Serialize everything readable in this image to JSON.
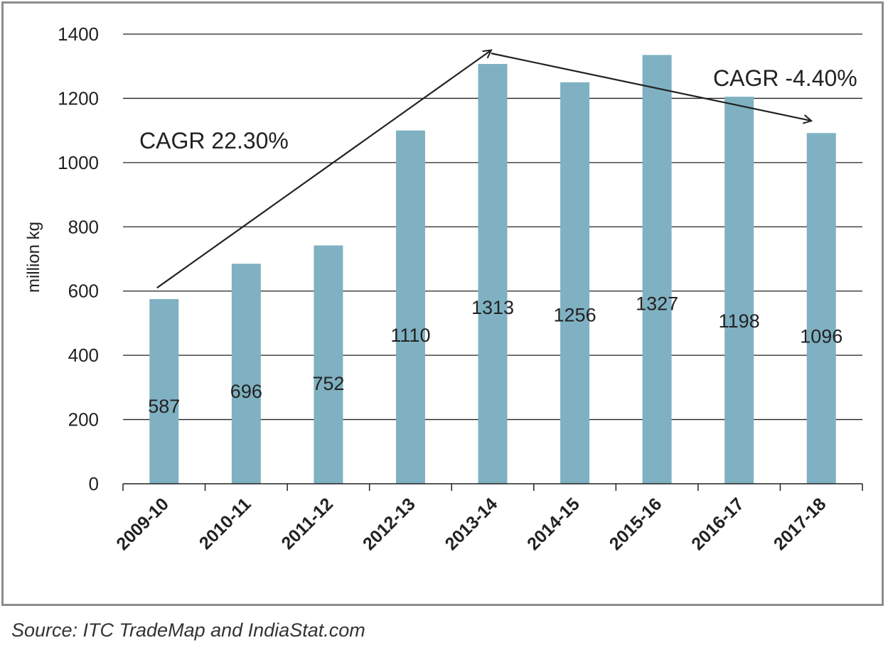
{
  "chart_data": {
    "type": "bar",
    "categories": [
      "2009-10",
      "2010-11",
      "2011-12",
      "2012-13",
      "2013-14",
      "2014-15",
      "2015-16",
      "2016-17",
      "2017-18"
    ],
    "series": [
      {
        "name": "million kg",
        "values": [
          587,
          696,
          752,
          1110,
          1313,
          1256,
          1327,
          1198,
          1096
        ],
        "bar_heights": [
          575,
          685,
          742,
          1100,
          1307,
          1250,
          1335,
          1205,
          1092
        ]
      }
    ],
    "ylabel": "million kg",
    "xlabel": "",
    "ylim": [
      0,
      1400
    ],
    "yticks": [
      0,
      200,
      400,
      600,
      800,
      1000,
      1200,
      1400
    ],
    "grid": true,
    "bar_color": "#7fb1c2",
    "annotations": [
      {
        "text": "CAGR 22.30%",
        "from_category": "2009-10",
        "to_category": "2013-14",
        "from_value": 610,
        "to_value": 1350
      },
      {
        "text": "CAGR -4.40%",
        "from_category": "2013-14",
        "to_category": "2017-18",
        "from_value": 1340,
        "to_value": 1130
      }
    ]
  },
  "source": "Source: ITC TradeMap and IndiaStat.com"
}
